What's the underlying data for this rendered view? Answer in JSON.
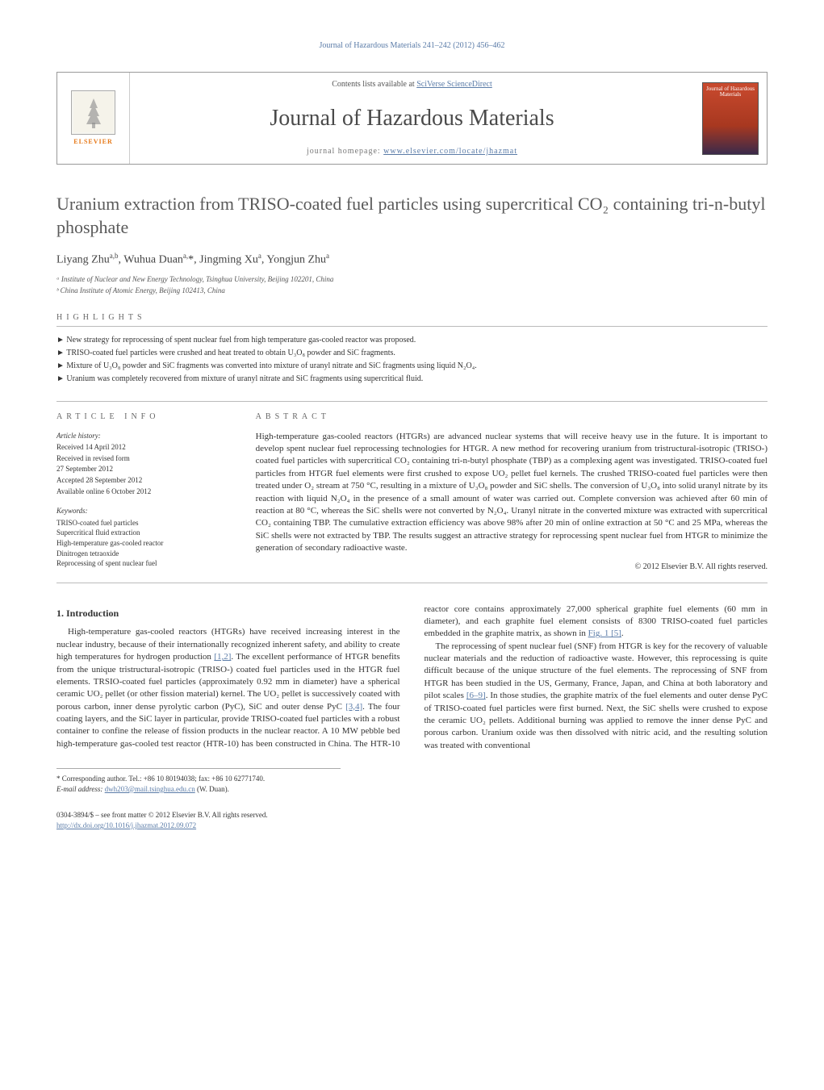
{
  "running_header": "Journal of Hazardous Materials 241–242 (2012) 456–462",
  "masthead": {
    "contents_prefix": "Contents lists available at ",
    "contents_link": "SciVerse ScienceDirect",
    "journal_name": "Journal of Hazardous Materials",
    "homepage_prefix": "journal homepage: ",
    "homepage_link": "www.elsevier.com/locate/jhazmat",
    "publisher_name": "ELSEVIER",
    "cover_journal_label": "Journal of Hazardous Materials"
  },
  "title": "Uranium extraction from TRISO-coated fuel particles using supercritical CO₂ containing tri-n-butyl phosphate",
  "authors_html": "Liyang Zhu<sup class=\"aff-sup\">a,b</sup>, Wuhua Duan<sup class=\"aff-sup\">a,</sup><span class=\"corr-star\">*</span>, Jingming Xu<sup class=\"aff-sup\">a</sup>, Yongjun Zhu<sup class=\"aff-sup\">a</sup>",
  "affiliations": [
    "ᵃ Institute of Nuclear and New Energy Technology, Tsinghua University, Beijing 102201, China",
    "ᵇ China Institute of Atomic Energy, Beijing 102413, China"
  ],
  "highlights_label": "HIGHLIGHTS",
  "highlights": [
    "New strategy for reprocessing of spent nuclear fuel from high temperature gas-cooled reactor was proposed.",
    "TRISO-coated fuel particles were crushed and heat treated to obtain U₃O₈ powder and SiC fragments.",
    "Mixture of U₃O₈ powder and SiC fragments was converted into mixture of uranyl nitrate and SiC fragments using liquid N₂O₄.",
    "Uranium was completely recovered from mixture of uranyl nitrate and SiC fragments using supercritical fluid."
  ],
  "article_info": {
    "heading": "ARTICLE INFO",
    "history_label": "Article history:",
    "history": [
      "Received 14 April 2012",
      "Received in revised form",
      "27 September 2012",
      "Accepted 28 September 2012",
      "Available online 6 October 2012"
    ],
    "keywords_label": "Keywords:",
    "keywords": [
      "TRISO-coated fuel particles",
      "Supercritical fluid extraction",
      "High-temperature gas-cooled reactor",
      "Dinitrogen tetraoxide",
      "Reprocessing of spent nuclear fuel"
    ]
  },
  "abstract": {
    "heading": "ABSTRACT",
    "text": "High-temperature gas-cooled reactors (HTGRs) are advanced nuclear systems that will receive heavy use in the future. It is important to develop spent nuclear fuel reprocessing technologies for HTGR. A new method for recovering uranium from tristructural-isotropic (TRISO-) coated fuel particles with supercritical CO₂ containing tri-n-butyl phosphate (TBP) as a complexing agent was investigated. TRISO-coated fuel particles from HTGR fuel elements were first crushed to expose UO₂ pellet fuel kernels. The crushed TRISO-coated fuel particles were then treated under O₂ stream at 750 °C, resulting in a mixture of U₃O₈ powder and SiC shells. The conversion of U₃O₈ into solid uranyl nitrate by its reaction with liquid N₂O₄ in the presence of a small amount of water was carried out. Complete conversion was achieved after 60 min of reaction at 80 °C, whereas the SiC shells were not converted by N₂O₄. Uranyl nitrate in the converted mixture was extracted with supercritical CO₂ containing TBP. The cumulative extraction efficiency was above 98% after 20 min of online extraction at 50 °C and 25 MPa, whereas the SiC shells were not extracted by TBP. The results suggest an attractive strategy for reprocessing spent nuclear fuel from HTGR to minimize the generation of secondary radioactive waste.",
    "copyright": "© 2012 Elsevier B.V. All rights reserved."
  },
  "body": {
    "section_number": "1.",
    "section_title": "Introduction",
    "p1_a": "High-temperature gas-cooled reactors (HTGRs) have received increasing interest in the nuclear industry, because of their internationally recognized inherent safety, and ability to create high temperatures for hydrogen production ",
    "ref12": "[1,2]",
    "p1_b": ". The excellent performance of HTGR benefits from the unique tristructural-isotropic (TRISO-) coated fuel particles used in the HTGR fuel elements. TRSIO-coated fuel particles (approximately 0.92 mm in diameter) have a spherical ceramic UO₂ pellet (or other fission material) kernel. The UO₂ pellet is successively coated with porous carbon, inner dense pyrolytic carbon (PyC), SiC and outer dense PyC ",
    "ref34": "[3,4]",
    "p1_c": ". The four coating layers, and the SiC layer in particular, provide TRISO-coated fuel particles with a robust container to confine the release ",
    "p1_d": "of fission products in the nuclear reactor. A 10 MW pebble bed high-temperature gas-cooled test reactor (HTR-10) has been constructed in China. The HTR-10 reactor core contains approximately 27,000 spherical graphite fuel elements (60 mm in diameter), and each graphite fuel element consists of 8300 TRISO-coated fuel particles embedded in the graphite matrix, as shown in ",
    "fig1": "Fig. 1",
    "ref5": " [5]",
    "p1_e": ".",
    "p2_a": "The reprocessing of spent nuclear fuel (SNF) from HTGR is key for the recovery of valuable nuclear materials and the reduction of radioactive waste. However, this reprocessing is quite difficult because of the unique structure of the fuel elements. The reprocessing of SNF from HTGR has been studied in the US, Germany, France, Japan, and China at both laboratory and pilot scales ",
    "ref69": "[6–9]",
    "p2_b": ". In those studies, the graphite matrix of the fuel elements and outer dense PyC of TRISO-coated fuel particles were first burned. Next, the SiC shells were crushed to expose the ceramic UO₂ pellets. Additional burning was applied to remove the inner dense PyC and porous carbon. Uranium oxide was then dissolved with nitric acid, and the resulting solution was treated with conventional"
  },
  "footnote": {
    "star": "*",
    "text": " Corresponding author. Tel.: +86 10 80194038; fax: +86 10 62771740.",
    "email_label": "E-mail address: ",
    "email": "dwh203@mail.tsinghua.edu.cn",
    "email_suffix": " (W. Duan)."
  },
  "bottom": {
    "left_line1": "0304-3894/$ – see front matter © 2012 Elsevier B.V. All rights reserved.",
    "doi": "http://dx.doi.org/10.1016/j.jhazmat.2012.09.072"
  },
  "colors": {
    "link": "#5b7ca8",
    "publisher_orange": "#e67817",
    "text": "#333333",
    "rule": "#bbbbbb"
  }
}
